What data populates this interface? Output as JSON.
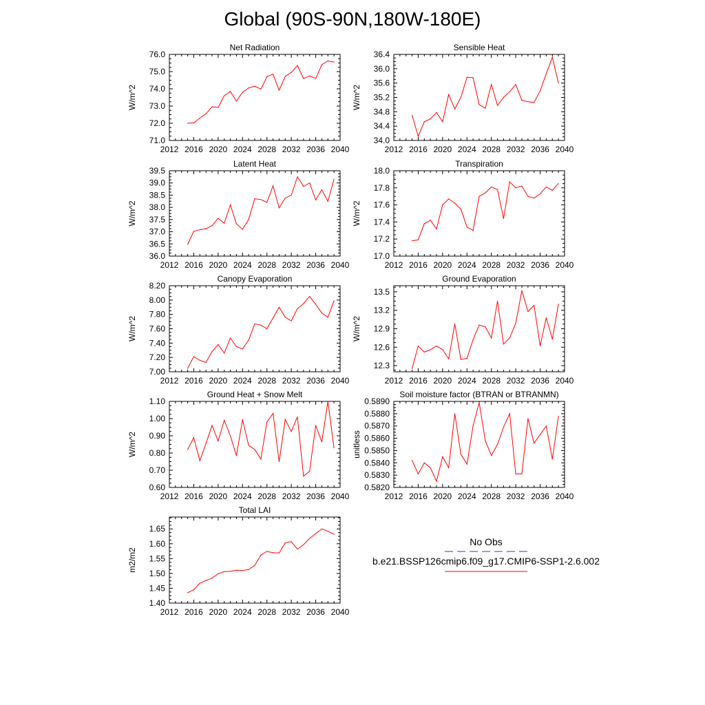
{
  "figure_title": "Global (90S-90N,180W-180E)",
  "colors": {
    "series": "#ff0000",
    "obs": "#3a32c8",
    "axis": "#000000"
  },
  "legend": {
    "obs_label": "No Obs",
    "case_label": "b.e21.BSSP126cmip6.f09_g17.CMIP6-SSP1-2.6.002"
  },
  "chart_data": [
    {
      "type": "line",
      "title": "Net Radiation",
      "ylabel": "W/m^2",
      "xlim": [
        2012,
        2040
      ],
      "xticks": [
        "2012",
        "2016",
        "2020",
        "2024",
        "2028",
        "2032",
        "2036",
        "2040"
      ],
      "ylim": [
        71.0,
        76.0
      ],
      "yticks": [
        "71.0",
        "72.0",
        "73.0",
        "74.0",
        "75.0",
        "76.0"
      ],
      "x": [
        2015,
        2016,
        2017,
        2018,
        2019,
        2020,
        2021,
        2022,
        2023,
        2024,
        2025,
        2026,
        2027,
        2028,
        2029,
        2030,
        2031,
        2032,
        2033,
        2034,
        2035,
        2036,
        2037,
        2038,
        2039
      ],
      "values": [
        72.0,
        72.02,
        72.3,
        72.55,
        72.95,
        72.92,
        73.6,
        73.85,
        73.28,
        73.8,
        74.05,
        74.15,
        73.98,
        74.7,
        74.85,
        73.92,
        74.72,
        74.95,
        75.35,
        74.6,
        74.75,
        74.6,
        75.4,
        75.62,
        75.55
      ]
    },
    {
      "type": "line",
      "title": "Sensible Heat",
      "ylabel": "W/m^2",
      "xlim": [
        2012,
        2040
      ],
      "xticks": [
        "2012",
        "2016",
        "2020",
        "2024",
        "2028",
        "2032",
        "2036",
        "2040"
      ],
      "ylim": [
        34.0,
        36.4
      ],
      "yticks": [
        "34.0",
        "34.4",
        "34.8",
        "35.2",
        "35.6",
        "36.0",
        "36.4"
      ],
      "x": [
        2015,
        2016,
        2017,
        2018,
        2019,
        2020,
        2021,
        2022,
        2023,
        2024,
        2025,
        2026,
        2027,
        2028,
        2029,
        2030,
        2031,
        2032,
        2033,
        2034,
        2035,
        2036,
        2037,
        2038,
        2039
      ],
      "values": [
        34.7,
        34.12,
        34.52,
        34.6,
        34.78,
        34.52,
        35.28,
        34.88,
        35.2,
        35.76,
        35.75,
        35.0,
        34.9,
        35.56,
        34.98,
        35.2,
        35.36,
        35.56,
        35.12,
        35.08,
        35.06,
        35.38,
        35.86,
        36.32,
        35.6
      ]
    },
    {
      "type": "line",
      "title": "Latent Heat",
      "ylabel": "W/m^2",
      "xlim": [
        2012,
        2040
      ],
      "xticks": [
        "2012",
        "2016",
        "2020",
        "2024",
        "2028",
        "2032",
        "2036",
        "2040"
      ],
      "ylim": [
        36.0,
        39.5
      ],
      "yticks": [
        "36.0",
        "36.5",
        "37.0",
        "37.5",
        "38.0",
        "38.5",
        "39.0",
        "39.5"
      ],
      "x": [
        2015,
        2016,
        2017,
        2018,
        2019,
        2020,
        2021,
        2022,
        2023,
        2024,
        2025,
        2026,
        2027,
        2028,
        2029,
        2030,
        2031,
        2032,
        2033,
        2034,
        2035,
        2036,
        2037,
        2038,
        2039
      ],
      "values": [
        36.48,
        37.02,
        37.08,
        37.12,
        37.25,
        37.55,
        37.35,
        38.1,
        37.32,
        37.1,
        37.5,
        38.35,
        38.32,
        38.2,
        38.88,
        37.98,
        38.38,
        38.5,
        39.25,
        38.85,
        39.0,
        38.3,
        38.72,
        38.25,
        39.15
      ]
    },
    {
      "type": "line",
      "title": "Transpiration",
      "ylabel": "W/m^2",
      "xlim": [
        2012,
        2040
      ],
      "xticks": [
        "2012",
        "2016",
        "2020",
        "2024",
        "2028",
        "2032",
        "2036",
        "2040"
      ],
      "ylim": [
        17.0,
        18.0
      ],
      "yticks": [
        "17.0",
        "17.2",
        "17.4",
        "17.6",
        "17.8",
        "18.0"
      ],
      "x": [
        2015,
        2016,
        2017,
        2018,
        2019,
        2020,
        2021,
        2022,
        2023,
        2024,
        2025,
        2026,
        2027,
        2028,
        2029,
        2030,
        2031,
        2032,
        2033,
        2034,
        2035,
        2036,
        2037,
        2038,
        2039
      ],
      "values": [
        17.18,
        17.19,
        17.38,
        17.42,
        17.32,
        17.6,
        17.67,
        17.62,
        17.55,
        17.34,
        17.3,
        17.7,
        17.74,
        17.81,
        17.78,
        17.44,
        17.87,
        17.8,
        17.82,
        17.7,
        17.68,
        17.73,
        17.81,
        17.77,
        17.85
      ]
    },
    {
      "type": "line",
      "title": "Canopy Evaporation",
      "ylabel": "W/m^2",
      "xlim": [
        2012,
        2040
      ],
      "xticks": [
        "2012",
        "2016",
        "2020",
        "2024",
        "2028",
        "2032",
        "2036",
        "2040"
      ],
      "ylim": [
        7.0,
        8.2
      ],
      "yticks": [
        "7.00",
        "7.20",
        "7.40",
        "7.60",
        "7.80",
        "8.00",
        "8.20"
      ],
      "x": [
        2015,
        2016,
        2017,
        2018,
        2019,
        2020,
        2021,
        2022,
        2023,
        2024,
        2025,
        2026,
        2027,
        2028,
        2029,
        2030,
        2031,
        2032,
        2033,
        2034,
        2035,
        2036,
        2037,
        2038,
        2039
      ],
      "values": [
        7.05,
        7.21,
        7.16,
        7.13,
        7.28,
        7.38,
        7.26,
        7.47,
        7.35,
        7.32,
        7.44,
        7.67,
        7.65,
        7.6,
        7.75,
        7.9,
        7.76,
        7.71,
        7.88,
        7.95,
        8.05,
        7.94,
        7.82,
        7.76,
        7.99
      ]
    },
    {
      "type": "line",
      "title": "Ground Evaporation",
      "ylabel": "W/m^2",
      "xlim": [
        2012,
        2040
      ],
      "xticks": [
        "2012",
        "2016",
        "2020",
        "2024",
        "2028",
        "2032",
        "2036",
        "2040"
      ],
      "ylim": [
        12.2,
        13.6
      ],
      "yticks": [
        "12.3",
        "12.6",
        "12.9",
        "13.2",
        "13.5"
      ],
      "x": [
        2015,
        2016,
        2017,
        2018,
        2019,
        2020,
        2021,
        2022,
        2023,
        2024,
        2025,
        2026,
        2027,
        2028,
        2029,
        2030,
        2031,
        2032,
        2033,
        2034,
        2035,
        2036,
        2037,
        2038,
        2039
      ],
      "values": [
        12.25,
        12.62,
        12.52,
        12.56,
        12.62,
        12.56,
        12.41,
        12.98,
        12.4,
        12.42,
        12.72,
        12.96,
        12.93,
        12.75,
        13.35,
        12.65,
        12.75,
        12.99,
        13.52,
        13.18,
        13.28,
        12.62,
        13.08,
        12.73,
        13.3
      ]
    },
    {
      "type": "line",
      "title": "Ground Heat + Snow Melt",
      "ylabel": "W/m^2",
      "xlim": [
        2012,
        2040
      ],
      "xticks": [
        "2012",
        "2016",
        "2020",
        "2024",
        "2028",
        "2032",
        "2036",
        "2040"
      ],
      "ylim": [
        0.6,
        1.1
      ],
      "yticks": [
        "0.60",
        "0.70",
        "0.80",
        "0.90",
        "1.00",
        "1.10"
      ],
      "x": [
        2015,
        2016,
        2017,
        2018,
        2019,
        2020,
        2021,
        2022,
        2023,
        2024,
        2025,
        2026,
        2027,
        2028,
        2029,
        2030,
        2031,
        2032,
        2033,
        2034,
        2035,
        2036,
        2037,
        2038,
        2039
      ],
      "values": [
        0.82,
        0.89,
        0.755,
        0.855,
        0.96,
        0.87,
        0.99,
        0.9,
        0.785,
        0.995,
        0.845,
        0.82,
        0.765,
        0.98,
        1.03,
        0.75,
        0.995,
        0.925,
        1.01,
        0.665,
        0.695,
        0.96,
        0.865,
        1.1,
        0.83
      ]
    },
    {
      "type": "line",
      "title": "Soil moisture factor (BTRAN or BTRANMN)",
      "ylabel": "unitless",
      "xlim": [
        2012,
        2040
      ],
      "xticks": [
        "2012",
        "2016",
        "2020",
        "2024",
        "2028",
        "2032",
        "2036",
        "2040"
      ],
      "ylim": [
        0.582,
        0.589
      ],
      "yticks": [
        "0.5820",
        "0.5830",
        "0.5840",
        "0.5850",
        "0.5860",
        "0.5870",
        "0.5880",
        "0.5890"
      ],
      "x": [
        2015,
        2016,
        2017,
        2018,
        2019,
        2020,
        2021,
        2022,
        2023,
        2024,
        2025,
        2026,
        2027,
        2028,
        2029,
        2030,
        2031,
        2032,
        2033,
        2034,
        2035,
        2036,
        2037,
        2038,
        2039
      ],
      "values": [
        0.5842,
        0.5831,
        0.584,
        0.5836,
        0.5825,
        0.5845,
        0.5836,
        0.588,
        0.5847,
        0.5839,
        0.587,
        0.5889,
        0.5858,
        0.5846,
        0.5855,
        0.5869,
        0.588,
        0.5831,
        0.5831,
        0.5876,
        0.5856,
        0.5863,
        0.587,
        0.5843,
        0.5878
      ]
    },
    {
      "type": "line",
      "title": "Total LAI",
      "ylabel": "m2/m2",
      "xlim": [
        2012,
        2040
      ],
      "xticks": [
        "2012",
        "2016",
        "2020",
        "2024",
        "2028",
        "2032",
        "2036",
        "2040"
      ],
      "ylim": [
        1.4,
        1.69
      ],
      "yticks": [
        "1.40",
        "1.45",
        "1.50",
        "1.55",
        "1.60",
        "1.65"
      ],
      "x": [
        2015,
        2016,
        2017,
        2018,
        2019,
        2020,
        2021,
        2022,
        2023,
        2024,
        2025,
        2026,
        2027,
        2028,
        2029,
        2030,
        2031,
        2032,
        2033,
        2034,
        2035,
        2036,
        2037,
        2038,
        2039
      ],
      "values": [
        1.435,
        1.445,
        1.467,
        1.476,
        1.484,
        1.499,
        1.506,
        1.507,
        1.511,
        1.51,
        1.513,
        1.527,
        1.562,
        1.574,
        1.57,
        1.569,
        1.603,
        1.607,
        1.582,
        1.597,
        1.618,
        1.634,
        1.65,
        1.642,
        1.632
      ]
    }
  ]
}
